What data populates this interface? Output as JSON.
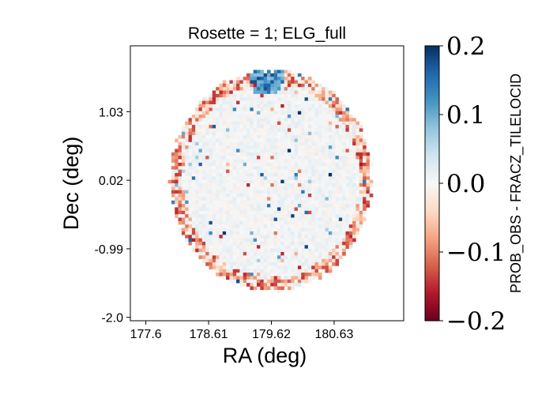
{
  "chart_data": {
    "type": "heatmap",
    "title": "Rosette = 1; ELG_full",
    "xlabel": "RA (deg)",
    "ylabel": "Dec (deg)",
    "xlim": [
      177.35,
      181.75
    ],
    "ylim": [
      -2.05,
      2.0
    ],
    "xticks": [
      {
        "value": 177.6,
        "label": "177.6"
      },
      {
        "value": 178.61,
        "label": "178.61"
      },
      {
        "value": 179.62,
        "label": "179.62"
      },
      {
        "value": 180.63,
        "label": "180.63"
      }
    ],
    "yticks": [
      {
        "value": 1.03,
        "label": "1.03"
      },
      {
        "value": 0.02,
        "label": "0.02"
      },
      {
        "value": -0.99,
        "label": "-0.99"
      },
      {
        "value": -2.0,
        "label": "-2.0"
      }
    ],
    "colorbar": {
      "label": "PROB_OBS - FRACZ_TILELOCID",
      "colormap": "RdBu",
      "vmin": -0.2,
      "vmax": 0.2,
      "ticks": [
        {
          "value": 0.2,
          "label": "0.2"
        },
        {
          "value": 0.1,
          "label": "0.1"
        },
        {
          "value": 0.0,
          "label": "0.0"
        },
        {
          "value": -0.1,
          "label": "−0.1"
        },
        {
          "value": -0.2,
          "label": "−0.2"
        }
      ]
    },
    "field": {
      "center_ra": 179.62,
      "center_dec": 0.02,
      "radius_deg": 1.62,
      "grid_bins": 80,
      "interior_value": 0.005,
      "edge_value": -0.06,
      "dense_blue_region": {
        "ra": 179.55,
        "dec": 1.55,
        "value": 0.18
      }
    }
  }
}
